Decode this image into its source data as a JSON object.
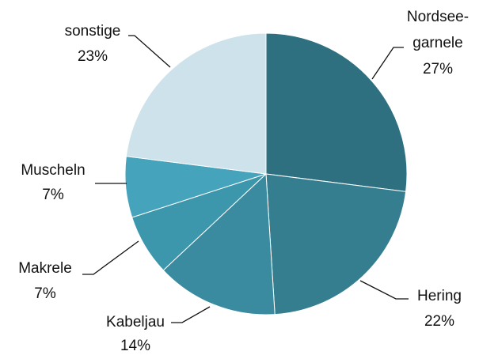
{
  "chart_data": {
    "type": "pie",
    "categories": [
      "Nordsee-garnele",
      "Hering",
      "Kabeljau",
      "Makrele",
      "Muscheln",
      "sonstige"
    ],
    "values": [
      27,
      22,
      14,
      7,
      7,
      23
    ],
    "value_labels": [
      "27%",
      "22%",
      "14%",
      "7%",
      "7%",
      "23%"
    ],
    "colors": [
      "#2e6f80",
      "#347e90",
      "#3a8b9f",
      "#3d97ac",
      "#45a3bb",
      "#cde2ea"
    ]
  }
}
